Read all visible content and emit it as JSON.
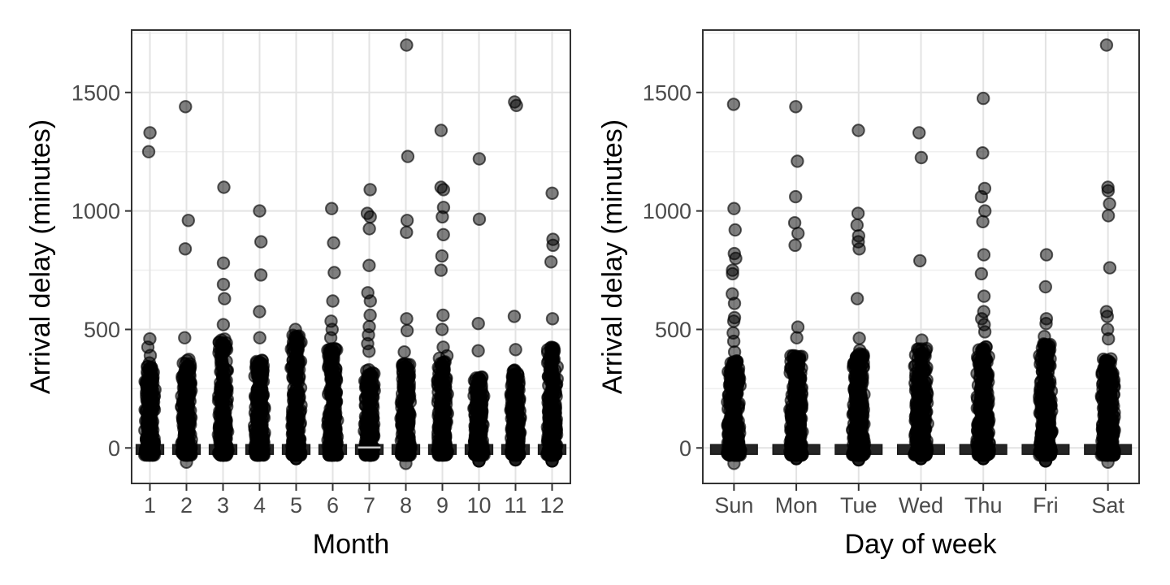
{
  "figure": {
    "background": "#ffffff",
    "border_color": "#333333",
    "grid_major_color": "#e3e3e3",
    "grid_minor_color": "#efefef",
    "tick_color": "#333333",
    "tick_label_color": "#4a4a4a",
    "title_color": "#000000",
    "point_color": "#000000",
    "point_fill_alpha": 0.5,
    "point_stroke_alpha": 0.62,
    "box_color": "#252525",
    "median_line_color": "#c9c9c9"
  },
  "chart_data": [
    {
      "type": "scatter",
      "title": "",
      "xlabel": "Month",
      "ylabel": "Arrival delay (minutes)",
      "categories": [
        "1",
        "2",
        "3",
        "4",
        "5",
        "6",
        "7",
        "8",
        "9",
        "10",
        "11",
        "12"
      ],
      "yticks": [
        0,
        500,
        1000,
        1500
      ],
      "ytick_labels": [
        "0",
        "500",
        "1000",
        "1500"
      ],
      "minor_gridlines": [
        250,
        750,
        1250,
        1750
      ],
      "ylim": [
        -150,
        1763
      ],
      "grid": true,
      "legend": "none",
      "boxplot": {
        "q3": 14,
        "q1": -27,
        "median": 2,
        "whisker_low": -45,
        "box_width_frac": 0.75,
        "median_visible_category": "7"
      },
      "cluster_max": [
        360,
        375,
        460,
        375,
        480,
        420,
        330,
        360,
        390,
        300,
        330,
        425
      ],
      "outliers": [
        [
          1330,
          1250,
          460,
          425,
          390
        ],
        [
          1440,
          960,
          840,
          465
        ],
        [
          1100,
          780,
          690,
          630,
          520,
          455
        ],
        [
          1000,
          870,
          730,
          575,
          465
        ],
        [
          500,
          470,
          435
        ],
        [
          1010,
          865,
          740,
          620,
          535,
          500,
          465,
          405
        ],
        [
          1090,
          990,
          975,
          925,
          770,
          655,
          620,
          560,
          512,
          477,
          440,
          408
        ],
        [
          1700,
          1230,
          960,
          910,
          545,
          495,
          405
        ],
        [
          1340,
          1100,
          1090,
          1015,
          975,
          900,
          810,
          750,
          560,
          500,
          425
        ],
        [
          1220,
          965,
          525,
          410
        ],
        [
          1460,
          1445,
          555,
          415
        ],
        [
          1075,
          880,
          855,
          785,
          545,
          420
        ]
      ],
      "low_outliers": [
        null,
        {
          "v": -60,
          "dark": false
        },
        null,
        null,
        {
          "v": -45,
          "dark": true
        },
        null,
        null,
        {
          "v": -65,
          "dark": false
        },
        null,
        {
          "v": -55,
          "dark": true
        },
        {
          "v": -50,
          "dark": true
        },
        {
          "v": -55,
          "dark": true
        }
      ]
    },
    {
      "type": "scatter",
      "title": "",
      "xlabel": "Day of week",
      "ylabel": "Arrival delay (minutes)",
      "categories": [
        "Sun",
        "Mon",
        "Tue",
        "Wed",
        "Thu",
        "Fri",
        "Sat"
      ],
      "yticks": [
        0,
        500,
        1000,
        1500
      ],
      "ytick_labels": [
        "0",
        "500",
        "1000",
        "1500"
      ],
      "minor_gridlines": [
        250,
        750,
        1250,
        1750
      ],
      "ylim": [
        -150,
        1763
      ],
      "grid": true,
      "legend": "none",
      "boxplot": {
        "q3": 14,
        "q1": -27,
        "median": 2,
        "whisker_low": -45,
        "box_width_frac": 0.75,
        "median_visible_category": null
      },
      "cluster_max": [
        370,
        390,
        400,
        420,
        430,
        440,
        385
      ],
      "outliers": [
        [
          1450,
          1010,
          920,
          820,
          800,
          750,
          735,
          650,
          610,
          550,
          535,
          485,
          450,
          405
        ],
        [
          1440,
          1210,
          1060,
          950,
          905,
          855,
          510,
          465
        ],
        [
          1340,
          990,
          940,
          895,
          870,
          840,
          630,
          463,
          412
        ],
        [
          1330,
          1225,
          790,
          455
        ],
        [
          1475,
          1245,
          1095,
          1060,
          1000,
          955,
          815,
          735,
          640,
          575,
          545,
          520,
          490
        ],
        [
          815,
          680,
          545,
          525,
          470
        ],
        [
          1700,
          1100,
          1085,
          1030,
          980,
          760,
          575,
          555,
          500,
          460
        ]
      ],
      "low_outliers": [
        {
          "v": -65,
          "dark": false
        },
        {
          "v": -45,
          "dark": true
        },
        {
          "v": -50,
          "dark": true
        },
        {
          "v": -45,
          "dark": true
        },
        {
          "v": -45,
          "dark": true
        },
        {
          "v": -55,
          "dark": true
        },
        {
          "v": -60,
          "dark": false
        }
      ]
    }
  ]
}
